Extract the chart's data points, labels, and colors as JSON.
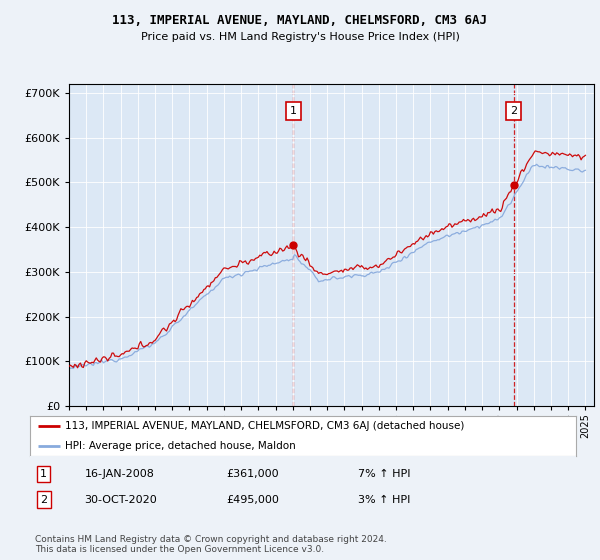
{
  "title": "113, IMPERIAL AVENUE, MAYLAND, CHELMSFORD, CM3 6AJ",
  "subtitle": "Price paid vs. HM Land Registry's House Price Index (HPI)",
  "legend_house": "113, IMPERIAL AVENUE, MAYLAND, CHELMSFORD, CM3 6AJ (detached house)",
  "legend_hpi": "HPI: Average price, detached house, Maldon",
  "annotation1_date": "16-JAN-2008",
  "annotation1_price": "£361,000",
  "annotation1_hpi": "7% ↑ HPI",
  "annotation2_date": "30-OCT-2020",
  "annotation2_price": "£495,000",
  "annotation2_hpi": "3% ↑ HPI",
  "footer": "Contains HM Land Registry data © Crown copyright and database right 2024.\nThis data is licensed under the Open Government Licence v3.0.",
  "bg_color": "#edf2f8",
  "plot_bg_color": "#dce8f5",
  "house_color": "#cc0000",
  "hpi_color": "#88aadd",
  "annotation_line_color": "#cc0000",
  "yticks": [
    0,
    100000,
    200000,
    300000,
    400000,
    500000,
    600000,
    700000
  ],
  "house_sale_years": [
    2008.04,
    2020.83
  ],
  "house_sale_prices": [
    361000,
    495000
  ]
}
